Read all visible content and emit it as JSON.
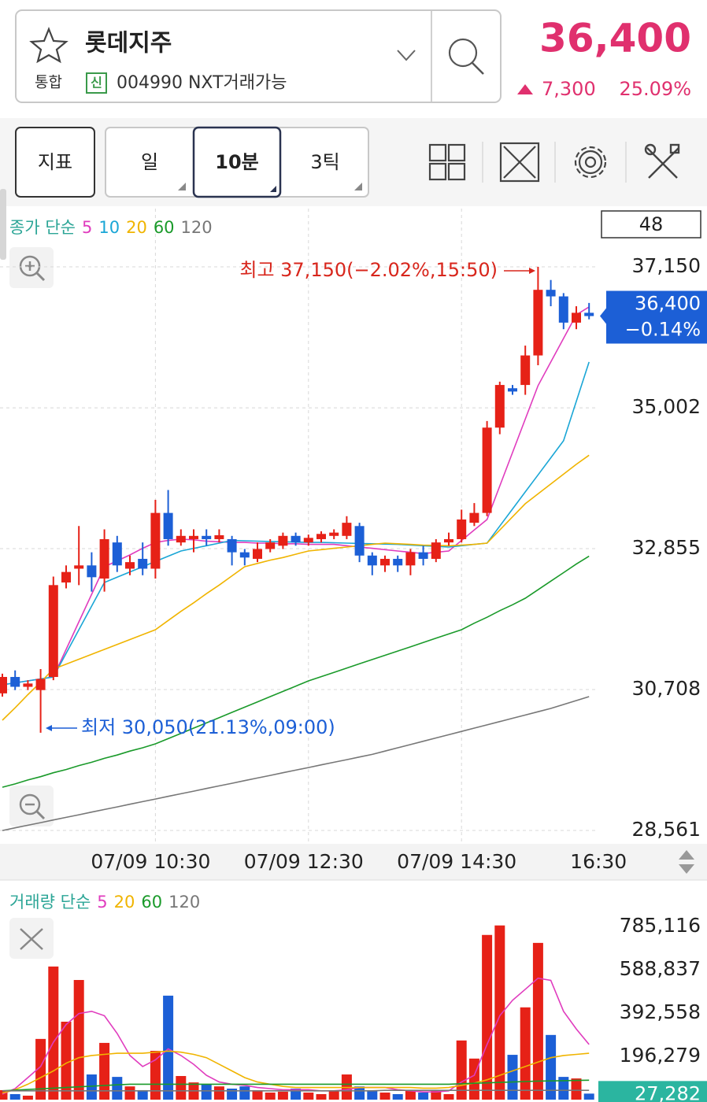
{
  "header": {
    "stock_name": "롯데지주",
    "market": "통합",
    "credit_badge": "신",
    "code_text": "004990 NXT거래가능",
    "price": "36,400",
    "change": "7,300",
    "change_pct": "25.09%"
  },
  "toolbar": {
    "indicator": "지표",
    "periods": [
      "일",
      "10분",
      "3틱"
    ]
  },
  "chart_data": [
    {
      "type": "candlestick",
      "legend_title": "종가 단순",
      "categories": [
        null,
        null,
        null,
        null,
        null,
        null,
        null,
        null,
        null,
        null,
        null,
        null,
        "07/09 10:30",
        null,
        null,
        null,
        null,
        null,
        null,
        null,
        null,
        null,
        null,
        null,
        "07/09 12:30",
        null,
        null,
        null,
        null,
        null,
        null,
        null,
        null,
        null,
        null,
        null,
        "07/09 14:30",
        null,
        null,
        null,
        null,
        null,
        null,
        null,
        null,
        null,
        "16:30"
      ],
      "open": [
        30650,
        30900,
        30750,
        30700,
        30900,
        32340,
        32550,
        32600,
        32400,
        32950,
        32550,
        32700,
        32550,
        33400,
        32950,
        33000,
        33050,
        33000,
        33000,
        32800,
        32700,
        32850,
        32900,
        33050,
        32950,
        33000,
        33050,
        33050,
        33200,
        32750,
        32600,
        32700,
        32600,
        32800,
        32700,
        32950,
        33000,
        33250,
        33400,
        34700,
        35300,
        35350,
        35800,
        36800,
        36700,
        36300,
        36450
      ],
      "high": [
        30950,
        31000,
        30850,
        31020,
        32430,
        32600,
        33200,
        32800,
        33150,
        33050,
        32750,
        32950,
        33600,
        33750,
        33150,
        33150,
        33150,
        33150,
        33050,
        32850,
        32950,
        33000,
        33100,
        33100,
        33070,
        33120,
        33150,
        33350,
        33250,
        32800,
        32750,
        32750,
        32850,
        32900,
        33000,
        33100,
        33450,
        33550,
        34800,
        35400,
        35350,
        35950,
        37150,
        36950,
        36750,
        36550,
        36600
      ],
      "low": [
        30600,
        30700,
        30700,
        30050,
        30850,
        32250,
        32300,
        32200,
        32200,
        32500,
        32450,
        32450,
        32400,
        32900,
        32900,
        32800,
        32900,
        32950,
        32600,
        32600,
        32650,
        32800,
        32850,
        32900,
        32900,
        32950,
        33000,
        33000,
        32650,
        32450,
        32500,
        32500,
        32450,
        32600,
        32650,
        32900,
        32950,
        33200,
        33350,
        34600,
        35200,
        35200,
        35650,
        36550,
        36200,
        36200,
        36350
      ],
      "close": [
        30900,
        30750,
        30800,
        30870,
        32300,
        32500,
        32600,
        32420,
        33000,
        32600,
        32650,
        32550,
        33400,
        33000,
        33050,
        33050,
        33000,
        33060,
        32800,
        32720,
        32850,
        32950,
        33050,
        32950,
        33020,
        33080,
        33100,
        33250,
        32750,
        32600,
        32700,
        32600,
        32800,
        32700,
        32950,
        33000,
        33300,
        33400,
        34700,
        35350,
        35250,
        35800,
        36800,
        36700,
        36300,
        36450,
        36400
      ],
      "up_color": "#e62117",
      "down_color": "#1c5fd6",
      "series": [
        {
          "name": "5",
          "color": "#e03cbe",
          "values": [
            30780,
            30810,
            30840,
            30870,
            30900,
            31320,
            31740,
            32160,
            32580,
            32670,
            32760,
            32860,
            32950,
            32980,
            33000,
            32990,
            32970,
            32960,
            32950,
            32950,
            32940,
            32940,
            32930,
            32930,
            32920,
            32920,
            32920,
            32900,
            32880,
            32860,
            32840,
            32820,
            32800,
            32780,
            32800,
            32820,
            32980,
            33140,
            33300,
            33810,
            34320,
            34830,
            35340,
            35700,
            36060,
            36420,
            36540
          ]
        },
        {
          "name": "10",
          "color": "#1aa6d6",
          "values": [
            30780,
            30810,
            30840,
            30870,
            30900,
            31260,
            31620,
            31980,
            32340,
            32420,
            32500,
            32580,
            32660,
            32740,
            32820,
            32860,
            32900,
            32940,
            32980,
            32975,
            32970,
            32965,
            32960,
            32955,
            32950,
            32950,
            32945,
            32940,
            32935,
            32930,
            32925,
            32920,
            32910,
            32900,
            32890,
            32880,
            32900,
            32920,
            32940,
            33200,
            33460,
            33720,
            33980,
            34240,
            34500,
            35100,
            35700
          ]
        },
        {
          "name": "20",
          "color": "#f0b400",
          "values": [
            30240,
            30430,
            30630,
            30820,
            31020,
            31095,
            31170,
            31245,
            31320,
            31395,
            31470,
            31545,
            31620,
            31760,
            31900,
            32030,
            32170,
            32300,
            32440,
            32580,
            32630,
            32680,
            32720,
            32770,
            32820,
            32840,
            32860,
            32880,
            32900,
            32920,
            32940,
            32930,
            32920,
            32910,
            32905,
            32900,
            32910,
            32920,
            32940,
            33140,
            33340,
            33540,
            33690,
            33840,
            33990,
            34140,
            34280
          ]
        },
        {
          "name": "60",
          "color": "#1a9a2a",
          "values": [
            29220,
            29270,
            29330,
            29380,
            29440,
            29490,
            29550,
            29600,
            29660,
            29710,
            29770,
            29820,
            29880,
            29960,
            30040,
            30120,
            30200,
            30280,
            30360,
            30440,
            30520,
            30600,
            30680,
            30760,
            30840,
            30905,
            30970,
            31035,
            31100,
            31165,
            31230,
            31295,
            31360,
            31425,
            31490,
            31555,
            31620,
            31720,
            31810,
            31910,
            32000,
            32100,
            32230,
            32360,
            32490,
            32620,
            32740
          ]
        },
        {
          "name": "120",
          "color": "#777777",
          "values": [
            28560,
            28600,
            28640,
            28680,
            28720,
            28760,
            28800,
            28840,
            28880,
            28920,
            28960,
            29000,
            29040,
            29080,
            29120,
            29160,
            29200,
            29240,
            29280,
            29320,
            29360,
            29400,
            29440,
            29480,
            29520,
            29560,
            29600,
            29640,
            29680,
            29720,
            29770,
            29820,
            29870,
            29920,
            29970,
            30020,
            30070,
            30120,
            30170,
            30220,
            30270,
            30320,
            30370,
            30420,
            30480,
            30540,
            30600
          ]
        }
      ],
      "ylim": [
        28381,
        38038
      ],
      "yticks": [
        {
          "value": 28561,
          "label": "28,561"
        },
        {
          "value": 30708,
          "label": "30,708"
        },
        {
          "value": 32855,
          "label": "32,855"
        },
        {
          "value": 35002,
          "label": "35,002"
        },
        {
          "value": 37150,
          "label": "37,150"
        }
      ],
      "grid": true,
      "annotations": [
        {
          "text": "최고 37,150(−2.02%,15:50)",
          "color": "#d8261c"
        },
        {
          "text": "최저 30,050(21.13%,09:00)",
          "color": "#1c5fd6"
        }
      ],
      "last_label": "36,400",
      "last_change": "−0.14%",
      "count": 48
    },
    {
      "type": "bar",
      "legend_title": "거래량 단순",
      "values": [
        43000,
        25000,
        18000,
        275000,
        603000,
        353000,
        542000,
        114000,
        257000,
        103000,
        60000,
        43000,
        221000,
        471000,
        107000,
        78000,
        71000,
        60000,
        50000,
        60000,
        43000,
        32000,
        36000,
        50000,
        32000,
        25000,
        43000,
        114000,
        60000,
        43000,
        32000,
        25000,
        43000,
        32000,
        43000,
        25000,
        268000,
        186000,
        746000,
        789000,
        203000,
        418000,
        710000,
        293000,
        103000,
        96000,
        27282
      ],
      "series": [
        {
          "name": "5",
          "color": "#e03cbe",
          "values": [
            25000,
            50000,
            100000,
            150000,
            260000,
            340000,
            390000,
            400000,
            380000,
            300000,
            200000,
            150000,
            180000,
            230000,
            200000,
            160000,
            110000,
            80000,
            70000,
            65000,
            55000,
            50000,
            45000,
            45000,
            45000,
            40000,
            40000,
            45000,
            55000,
            55000,
            55000,
            45000,
            40000,
            35000,
            35000,
            40000,
            80000,
            110000,
            250000,
            380000,
            450000,
            500000,
            550000,
            540000,
            400000,
            320000,
            250000
          ]
        },
        {
          "name": "20",
          "color": "#f0b400",
          "values": [
            30000,
            45000,
            70000,
            100000,
            130000,
            165000,
            190000,
            200000,
            205000,
            210000,
            210000,
            210000,
            215000,
            220000,
            215000,
            205000,
            190000,
            160000,
            130000,
            100000,
            80000,
            70000,
            60000,
            55000,
            55000,
            55000,
            55000,
            55000,
            55000,
            55000,
            55000,
            55000,
            55000,
            52000,
            52000,
            55000,
            65000,
            75000,
            90000,
            110000,
            130000,
            150000,
            170000,
            190000,
            200000,
            205000,
            210000
          ]
        },
        {
          "name": "60",
          "color": "#1a9a2a",
          "values": [
            40000,
            43000,
            46000,
            49000,
            52000,
            55000,
            58000,
            61000,
            64000,
            67000,
            70000,
            70000,
            70000,
            70000,
            70000,
            70000,
            70000,
            70000,
            70000,
            70000,
            70000,
            70000,
            70000,
            70000,
            70000,
            70000,
            70000,
            70000,
            70000,
            70000,
            70000,
            70000,
            70000,
            70000,
            70000,
            70000,
            72000,
            74000,
            76000,
            78000,
            80000,
            82000,
            84000,
            85000,
            86000,
            87000,
            88000
          ]
        },
        {
          "name": "120",
          "color": "#777777",
          "values": [
            40000,
            40000,
            40000,
            40000,
            40000,
            40000,
            40000,
            40000,
            40000,
            40000,
            40000,
            40000,
            40000,
            40000,
            40000,
            40000,
            40000,
            40000,
            40000,
            40000,
            40000,
            40000,
            40000,
            40000,
            40000,
            40000,
            40000,
            40000,
            40000,
            40000,
            42000,
            42000,
            42000,
            42000,
            42000,
            42000,
            42000,
            42000,
            42000,
            42000,
            42000,
            42000,
            42000,
            42000,
            42000,
            42000,
            42000
          ]
        }
      ],
      "ylim": [
        0,
        845000
      ],
      "yticks": [
        {
          "value": 196279,
          "label": "196,279"
        },
        {
          "value": 392558,
          "label": "392,558"
        },
        {
          "value": 588837,
          "label": "588,837"
        },
        {
          "value": 785116,
          "label": "785,116"
        }
      ],
      "last_label": "27,282"
    }
  ]
}
